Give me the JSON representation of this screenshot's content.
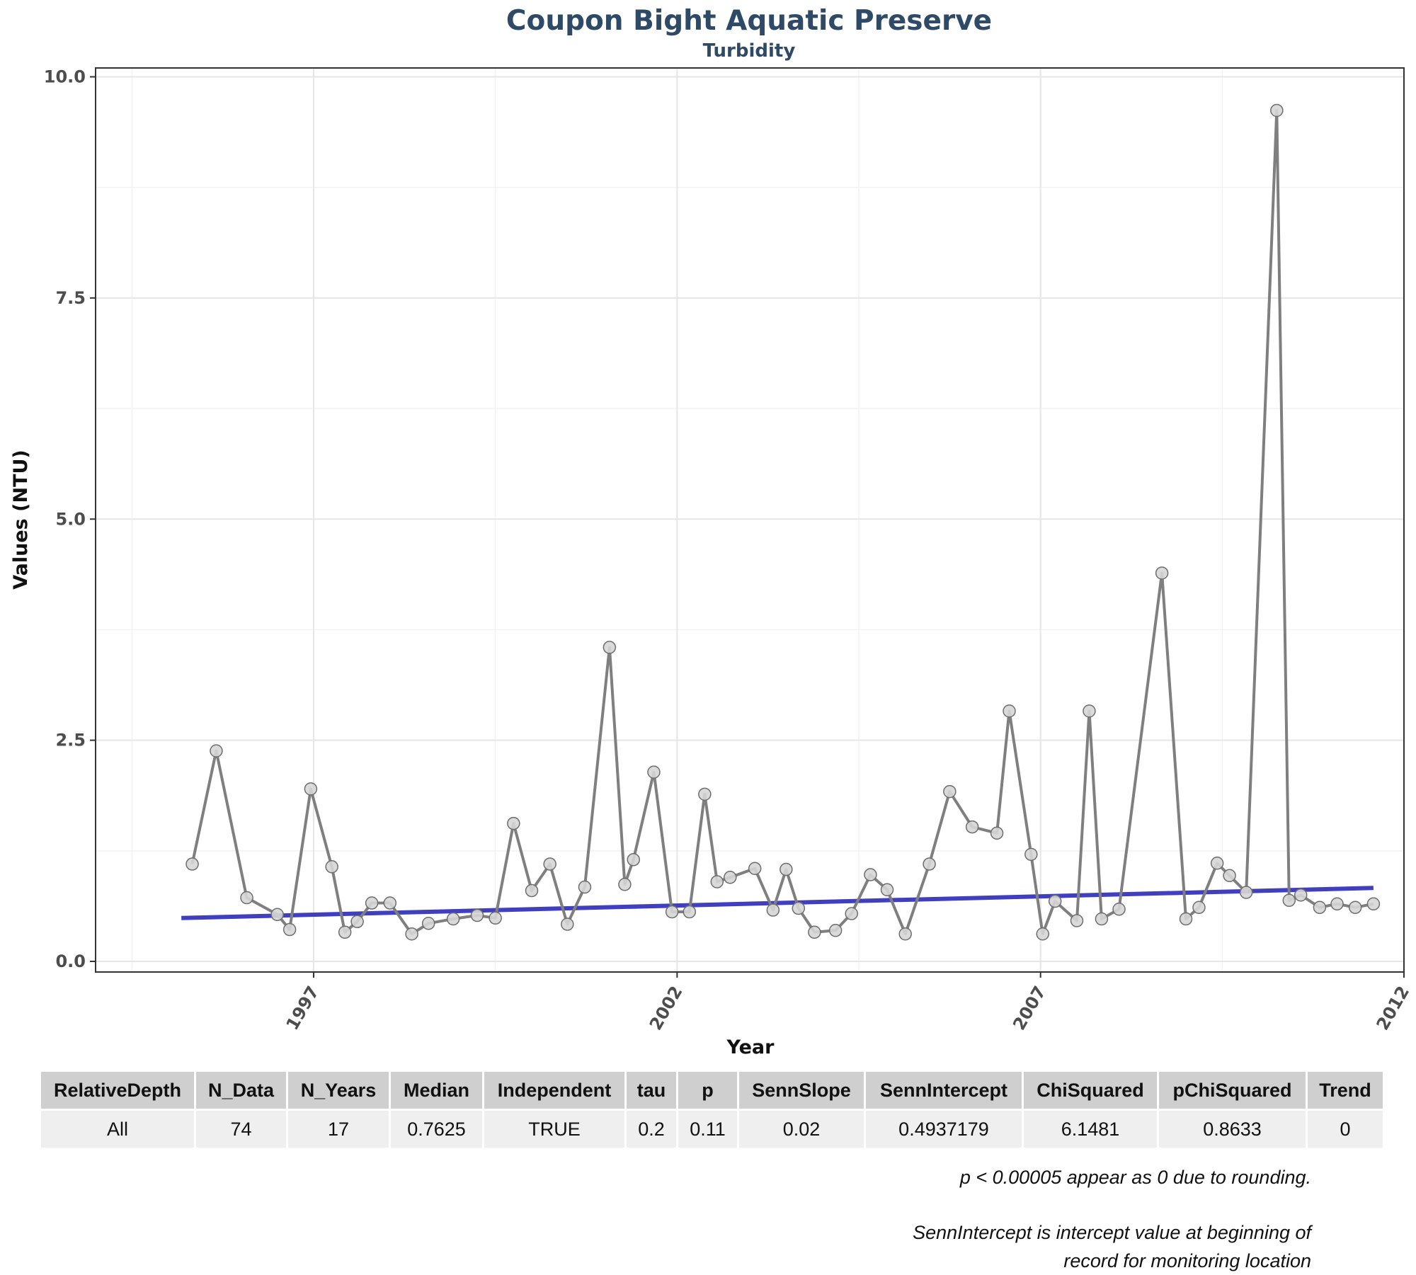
{
  "chart_data": {
    "type": "line",
    "title": "Coupon Bight Aquatic Preserve",
    "subtitle": "Turbidity",
    "xlabel": "Year",
    "ylabel": "Values (NTU)",
    "xlim": [
      1994.0,
      2012.0
    ],
    "ylim": [
      -0.12,
      10.1
    ],
    "x_ticks": [
      1997,
      2002,
      2007,
      2012
    ],
    "y_ticks": [
      0.0,
      2.5,
      5.0,
      7.5,
      10.0
    ],
    "y_tick_labels": [
      "0.0",
      "2.5",
      "5.0",
      "7.5",
      "10.0"
    ],
    "grid": true,
    "colors": {
      "data_line": "#7f7f7f",
      "point_fill": "#d6d6d6",
      "point_stroke": "#6e6e6e",
      "trend_line": "#3f3fbf",
      "title": "#2e4a66"
    },
    "series": [
      {
        "x": [
          1995.33,
          1995.66,
          1996.08,
          1996.5,
          1996.67,
          1996.96,
          1997.25,
          1997.43,
          1997.6,
          1997.8,
          1998.05,
          1998.35,
          1998.58,
          1998.92,
          1999.25,
          1999.5,
          1999.75,
          2000.0,
          2000.25,
          2000.49,
          2000.73,
          2001.07,
          2001.28,
          2001.4,
          2001.68,
          2001.93,
          2002.17,
          2002.38,
          2002.55,
          2002.73,
          2003.07,
          2003.32,
          2003.5,
          2003.67,
          2003.89,
          2004.18,
          2004.4,
          2004.66,
          2004.89,
          2005.14,
          2005.47,
          2005.75,
          2006.06,
          2006.4,
          2006.57,
          2006.87,
          2007.03,
          2007.2,
          2007.5,
          2007.67,
          2007.84,
          2008.08,
          2008.67,
          2009.0,
          2009.18,
          2009.43,
          2009.6,
          2009.83,
          2010.25,
          2010.42,
          2010.58,
          2010.84,
          2011.08,
          2011.33,
          2011.58
        ],
        "values": [
          1.1,
          2.38,
          0.72,
          0.53,
          0.36,
          1.95,
          1.07,
          0.33,
          0.45,
          0.66,
          0.66,
          0.31,
          0.43,
          0.48,
          0.52,
          0.49,
          1.56,
          0.8,
          1.1,
          0.42,
          0.84,
          3.55,
          0.87,
          1.15,
          2.14,
          0.56,
          0.56,
          1.89,
          0.9,
          0.95,
          1.05,
          0.58,
          1.04,
          0.6,
          0.33,
          0.35,
          0.54,
          0.98,
          0.81,
          0.31,
          1.1,
          1.92,
          1.52,
          1.45,
          2.83,
          1.21,
          0.31,
          0.68,
          0.46,
          2.83,
          0.48,
          0.59,
          4.39,
          0.48,
          0.61,
          1.11,
          0.97,
          0.78,
          9.62,
          0.69,
          0.75,
          0.61,
          0.65,
          0.61,
          0.65
        ]
      }
    ],
    "trend_line": {
      "x": [
        1995.18,
        2011.58
      ],
      "y": [
        0.49,
        0.83
      ]
    }
  },
  "stats_table": {
    "headers": [
      "RelativeDepth",
      "N_Data",
      "N_Years",
      "Median",
      "Independent",
      "tau",
      "p",
      "SennSlope",
      "SennIntercept",
      "ChiSquared",
      "pChiSquared",
      "Trend"
    ],
    "row": [
      "All",
      "74",
      "17",
      "0.7625",
      "TRUE",
      "0.2",
      "0.11",
      "0.02",
      "0.4937179",
      "6.1481",
      "0.8633",
      "0"
    ]
  },
  "notes": {
    "rounding": "p < 0.00005 appear as 0 due to rounding.",
    "intercept_line1": "SennIntercept is intercept value at beginning of",
    "intercept_line2": "record for monitoring location"
  }
}
